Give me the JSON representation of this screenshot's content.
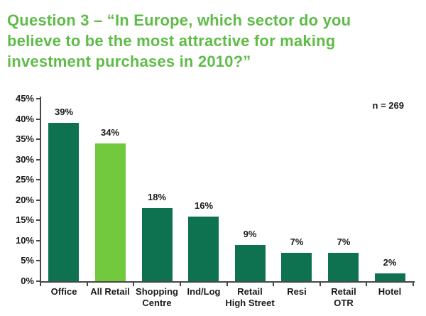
{
  "title": {
    "line1": "Question 3 – “In Europe, which sector do you",
    "line2": "believe to be the most attractive for making",
    "line3": "investment purchases in 2010?”"
  },
  "annotation": {
    "sample_size": "n = 269"
  },
  "colors": {
    "title_green": "#5FBC48",
    "bar_dark": "#0E7150",
    "bar_highlight": "#72C93E",
    "axis": "#474747",
    "text": "#1A1A1A"
  },
  "chart_data": {
    "type": "bar",
    "title": "Question 3 – “In Europe, which sector do you believe to be the most attractive for making investment purchases in 2010?”",
    "categories": [
      "Office",
      "All Retail",
      "Shopping\nCentre",
      "Ind/Log",
      "Retail\nHigh Street",
      "Resi",
      "Retail\nOTR",
      "Hotel"
    ],
    "values": [
      39,
      34,
      18,
      16,
      9,
      7,
      7,
      2
    ],
    "value_labels": [
      "39%",
      "34%",
      "18%",
      "16%",
      "9%",
      "7%",
      "7%",
      "2%"
    ],
    "bar_colors": [
      "#0E7150",
      "#72C93E",
      "#0E7150",
      "#0E7150",
      "#0E7150",
      "#0E7150",
      "#0E7150",
      "#0E7150"
    ],
    "xlabel": "",
    "ylabel": "",
    "ylim": [
      0,
      45
    ],
    "ytick_step": 5,
    "ytick_labels": [
      "0%",
      "5%",
      "10%",
      "15%",
      "20%",
      "25%",
      "30%",
      "35%",
      "40%",
      "45%"
    ],
    "grid": false,
    "legend": false,
    "annotation": "n = 269"
  }
}
